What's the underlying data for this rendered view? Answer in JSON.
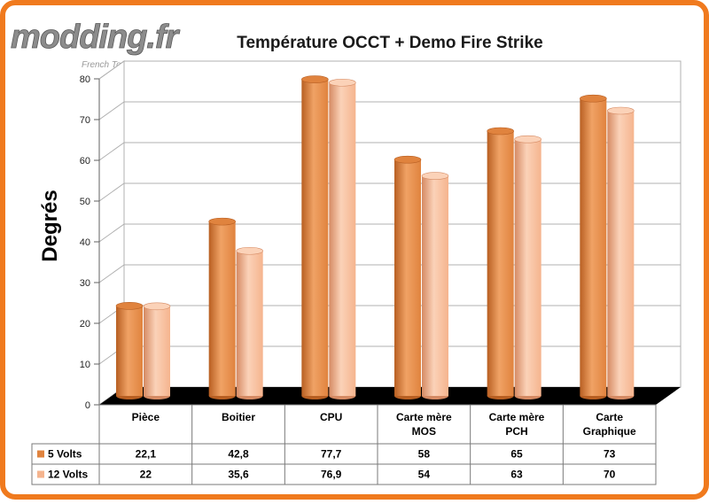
{
  "watermark": {
    "logo_text": "modding.fr",
    "tagline": "French Touch"
  },
  "colors": {
    "frame": "#f07a1e",
    "series_5v": "#e0833e",
    "series_5v_light": "#f0a265",
    "series_5v_dark": "#b85f22",
    "series_12v": "#f5b48e",
    "series_12v_light": "#fbd2b8",
    "series_12v_dark": "#d58a63",
    "floor": "#000000",
    "grid": "#b0b0b0"
  },
  "chart_data": {
    "type": "bar",
    "title": "Température OCCT + Demo Fire Strike",
    "ylabel": "Degrés",
    "xlabel": "",
    "ylim": [
      0,
      80
    ],
    "yticks": [
      0,
      10,
      20,
      30,
      40,
      50,
      60,
      70,
      80
    ],
    "grid": true,
    "categories": [
      "Pièce",
      "Boitier",
      "CPU",
      "Carte mère\nMOS",
      "Carte mère\nPCH",
      "Carte\nGraphique"
    ],
    "series": [
      {
        "name": "5 Volts",
        "values": [
          22.1,
          42.8,
          77.7,
          58,
          65,
          73
        ],
        "labels": [
          "22,1",
          "42,8",
          "77,7",
          "58",
          "65",
          "73"
        ]
      },
      {
        "name": "12 Volts",
        "values": [
          22,
          35.6,
          76.9,
          54,
          63,
          70
        ],
        "labels": [
          "22",
          "35,6",
          "76,9",
          "54",
          "63",
          "70"
        ]
      }
    ]
  }
}
